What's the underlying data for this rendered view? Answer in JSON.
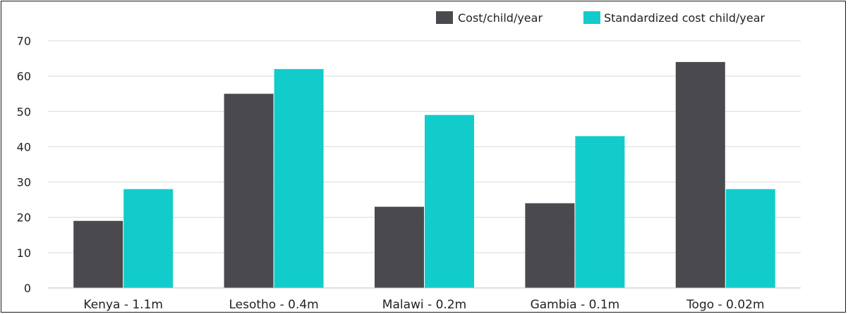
{
  "chart_data": {
    "type": "bar",
    "title": "",
    "xlabel": "",
    "ylabel": "",
    "categories": [
      "Kenya - 1.1m",
      "Lesotho - 0.4m",
      "Malawi - 0.2m",
      "Gambia - 0.1m",
      "Togo - 0.02m"
    ],
    "series": [
      {
        "name": "Cost/child/year",
        "color": "#4a4a4e",
        "values": [
          19,
          55,
          23,
          24,
          64
        ]
      },
      {
        "name": "Standardized cost child/year",
        "color": "#12cccc",
        "values": [
          28,
          62,
          49,
          43,
          28
        ]
      }
    ],
    "ylim": [
      0,
      70
    ],
    "yticks": [
      0,
      10,
      20,
      30,
      40,
      50,
      60,
      70
    ],
    "grid": true,
    "legend_position": "top-right"
  }
}
